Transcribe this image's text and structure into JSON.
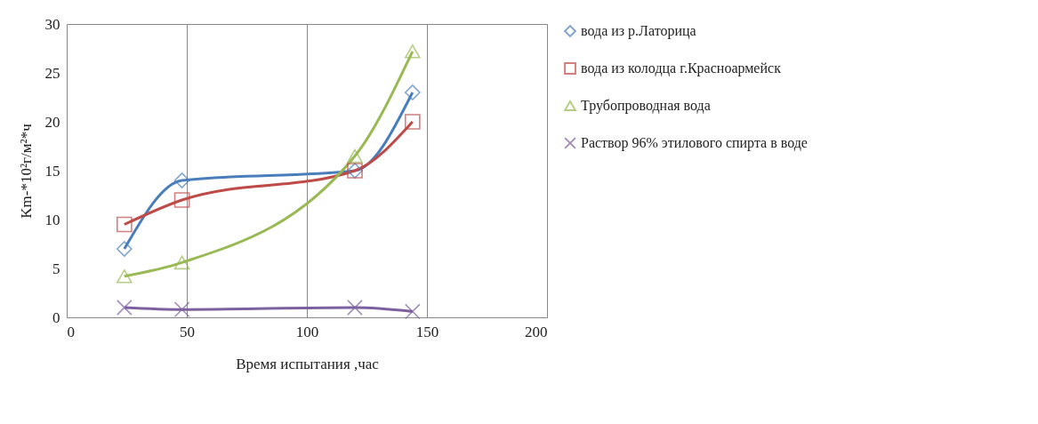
{
  "chart_data": {
    "type": "line",
    "xlabel": "Время испытания ,час",
    "ylabel": "Km-*10²г/м²*ч",
    "x": [
      24,
      48,
      120,
      144
    ],
    "series": [
      {
        "name": "вода из р.Латорица",
        "color": "#4a7ebb",
        "marker": "diamond",
        "values": [
          7,
          14,
          15,
          23
        ]
      },
      {
        "name": "вода из колодца г.Красноармейск",
        "color": "#be4b48",
        "marker": "square",
        "values": [
          9.5,
          12,
          15,
          20
        ]
      },
      {
        "name": "Трубопроводная вода",
        "color": "#98b954",
        "marker": "triangle",
        "values": [
          4.2,
          5.6,
          16.5,
          27.2
        ]
      },
      {
        "name": "Раствор 96% этилового спирта в воде",
        "color": "#7d60a0",
        "marker": "cross",
        "values": [
          1,
          0.8,
          1,
          0.6
        ]
      }
    ],
    "xlim": [
      0,
      200
    ],
    "xticks": [
      0,
      50,
      100,
      150,
      200
    ],
    "ylim": [
      0,
      30
    ],
    "yticks": [
      0,
      5,
      10,
      15,
      20,
      25,
      30
    ],
    "grid": "x",
    "legend": "right"
  }
}
